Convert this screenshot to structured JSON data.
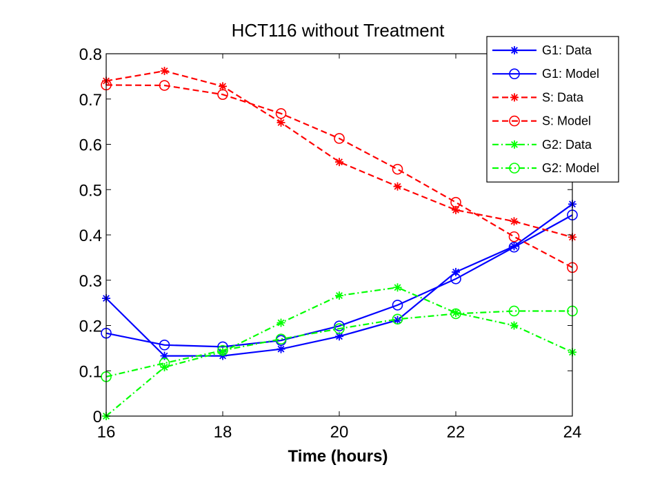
{
  "chart_data": {
    "type": "line",
    "title": "HCT116 without Treatment",
    "xlabel": "Time (hours)",
    "ylabel": "",
    "xlim": [
      16,
      24
    ],
    "ylim": [
      0,
      0.8
    ],
    "xticks": [
      16,
      18,
      20,
      22,
      24
    ],
    "yticks": [
      0,
      0.1,
      0.2,
      0.3,
      0.4,
      0.5,
      0.6,
      0.7,
      0.8
    ],
    "xtick_labels": [
      "16",
      "18",
      "20",
      "22",
      "24"
    ],
    "ytick_labels": [
      "0",
      "0.1",
      "0.2",
      "0.3",
      "0.4",
      "0.5",
      "0.6",
      "0.7",
      "0.8"
    ],
    "legend_position": "top-right",
    "grid": false,
    "x": [
      16,
      17,
      18,
      19,
      20,
      21,
      22,
      23,
      24
    ],
    "series": [
      {
        "name": "G1: Data",
        "color": "#0000ff",
        "linestyle": "solid",
        "marker": "asterisk",
        "values": [
          0.26,
          0.133,
          0.133,
          0.148,
          0.176,
          0.212,
          0.318,
          0.375,
          0.468
        ]
      },
      {
        "name": "G1: Model",
        "color": "#0000ff",
        "linestyle": "solid",
        "marker": "circle",
        "values": [
          0.183,
          0.157,
          0.153,
          0.167,
          0.199,
          0.245,
          0.303,
          0.373,
          0.444
        ]
      },
      {
        "name": "S: Data",
        "color": "#ff0000",
        "linestyle": "dashed",
        "marker": "asterisk",
        "values": [
          0.74,
          0.762,
          0.728,
          0.648,
          0.561,
          0.507,
          0.455,
          0.43,
          0.395
        ]
      },
      {
        "name": "S: Model",
        "color": "#ff0000",
        "linestyle": "dashed",
        "marker": "circle",
        "values": [
          0.731,
          0.73,
          0.71,
          0.668,
          0.613,
          0.545,
          0.472,
          0.396,
          0.328
        ]
      },
      {
        "name": "G2: Data",
        "color": "#00ff00",
        "linestyle": "dashdot",
        "marker": "asterisk",
        "values": [
          0.0,
          0.108,
          0.142,
          0.206,
          0.266,
          0.284,
          0.228,
          0.2,
          0.141
        ]
      },
      {
        "name": "G2: Model",
        "color": "#00ff00",
        "linestyle": "dashdot",
        "marker": "circle",
        "values": [
          0.087,
          0.117,
          0.145,
          0.17,
          0.193,
          0.214,
          0.226,
          0.232,
          0.232
        ]
      }
    ]
  }
}
